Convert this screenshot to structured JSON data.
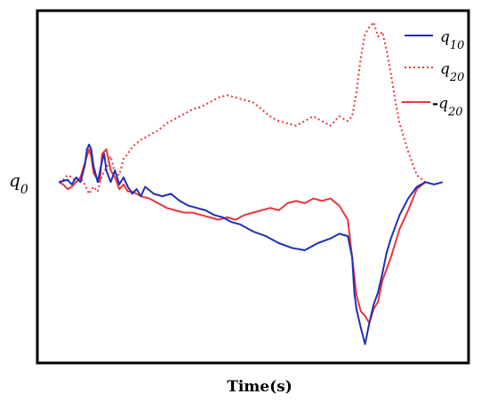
{
  "chart_data": {
    "type": "line",
    "title": "",
    "xlabel": "Time(s)",
    "ylabel": "q0",
    "ylabel_base": "q",
    "ylabel_sub": "0",
    "xlim": [
      0,
      1
    ],
    "ylim": [
      -0.75,
      0.75
    ],
    "grid": false,
    "ticks": false,
    "legend_position": "top-right",
    "series": [
      {
        "name": "q10",
        "name_base": "q",
        "name_sub": "10",
        "color": "#1f2fb5",
        "dash": "solid",
        "x": [
          0.05,
          0.06,
          0.07,
          0.08,
          0.09,
          0.1,
          0.11,
          0.115,
          0.12,
          0.125,
          0.13,
          0.14,
          0.15,
          0.155,
          0.16,
          0.17,
          0.18,
          0.19,
          0.2,
          0.21,
          0.22,
          0.23,
          0.24,
          0.25,
          0.27,
          0.29,
          0.31,
          0.33,
          0.35,
          0.37,
          0.39,
          0.41,
          0.43,
          0.45,
          0.47,
          0.5,
          0.53,
          0.56,
          0.59,
          0.62,
          0.65,
          0.68,
          0.7,
          0.72,
          0.73,
          0.735,
          0.74,
          0.75,
          0.76,
          0.77,
          0.78,
          0.79,
          0.8,
          0.81,
          0.82,
          0.84,
          0.86,
          0.88,
          0.9,
          0.92,
          0.94
        ],
        "values": [
          0.02,
          0.025,
          0.03,
          0.01,
          0.04,
          0.02,
          0.09,
          0.16,
          0.18,
          0.16,
          0.09,
          0.02,
          0.11,
          0.14,
          0.07,
          0.02,
          0.07,
          0.01,
          0.04,
          0.0,
          -0.03,
          -0.01,
          -0.04,
          0.0,
          -0.03,
          -0.04,
          -0.03,
          -0.06,
          -0.08,
          -0.09,
          -0.1,
          -0.12,
          -0.13,
          -0.15,
          -0.16,
          -0.19,
          -0.21,
          -0.24,
          -0.26,
          -0.27,
          -0.24,
          -0.22,
          -0.2,
          -0.21,
          -0.3,
          -0.45,
          -0.52,
          -0.6,
          -0.67,
          -0.58,
          -0.5,
          -0.45,
          -0.37,
          -0.28,
          -0.22,
          -0.12,
          -0.05,
          0.0,
          0.02,
          0.01,
          0.02
        ]
      },
      {
        "name": "q20",
        "name_base": "q",
        "name_sub": "20",
        "color": "#e8363c",
        "dash": "dotted",
        "x": [
          0.05,
          0.06,
          0.07,
          0.08,
          0.09,
          0.1,
          0.11,
          0.12,
          0.13,
          0.14,
          0.145,
          0.15,
          0.16,
          0.17,
          0.18,
          0.19,
          0.2,
          0.21,
          0.22,
          0.24,
          0.26,
          0.28,
          0.3,
          0.32,
          0.34,
          0.36,
          0.38,
          0.4,
          0.42,
          0.44,
          0.46,
          0.48,
          0.5,
          0.52,
          0.54,
          0.56,
          0.58,
          0.6,
          0.62,
          0.64,
          0.66,
          0.68,
          0.7,
          0.72,
          0.73,
          0.74,
          0.75,
          0.76,
          0.77,
          0.78,
          0.79,
          0.8,
          0.81,
          0.82,
          0.83,
          0.84,
          0.86,
          0.88,
          0.9
        ],
        "values": [
          0.02,
          0.03,
          0.05,
          0.04,
          0.02,
          0.04,
          0.01,
          -0.03,
          0.0,
          -0.02,
          0.02,
          0.05,
          0.08,
          0.13,
          0.06,
          0.05,
          0.12,
          0.14,
          0.17,
          0.2,
          0.22,
          0.24,
          0.27,
          0.29,
          0.31,
          0.33,
          0.34,
          0.36,
          0.38,
          0.39,
          0.38,
          0.37,
          0.36,
          0.33,
          0.3,
          0.28,
          0.27,
          0.26,
          0.28,
          0.3,
          0.28,
          0.26,
          0.3,
          0.28,
          0.3,
          0.4,
          0.55,
          0.65,
          0.68,
          0.7,
          0.64,
          0.66,
          0.58,
          0.48,
          0.37,
          0.27,
          0.15,
          0.05,
          0.02
        ]
      },
      {
        "name": "-q20",
        "name_base": "q",
        "name_sub": "20",
        "name_prefix": "-",
        "color": "#e8363c",
        "dash": "solid",
        "x": [
          0.05,
          0.06,
          0.07,
          0.08,
          0.09,
          0.1,
          0.11,
          0.12,
          0.125,
          0.13,
          0.14,
          0.145,
          0.15,
          0.16,
          0.17,
          0.18,
          0.19,
          0.2,
          0.21,
          0.22,
          0.24,
          0.26,
          0.28,
          0.3,
          0.32,
          0.34,
          0.36,
          0.38,
          0.4,
          0.42,
          0.44,
          0.46,
          0.48,
          0.5,
          0.52,
          0.54,
          0.56,
          0.58,
          0.6,
          0.62,
          0.64,
          0.66,
          0.68,
          0.7,
          0.72,
          0.73,
          0.74,
          0.75,
          0.76,
          0.77,
          0.78,
          0.79,
          0.8,
          0.82,
          0.84,
          0.86,
          0.88,
          0.9
        ],
        "values": [
          0.02,
          0.01,
          -0.01,
          0.0,
          0.02,
          0.04,
          0.1,
          0.16,
          0.13,
          0.06,
          0.03,
          0.02,
          0.14,
          0.16,
          0.07,
          0.04,
          -0.01,
          0.01,
          -0.02,
          -0.02,
          -0.04,
          -0.05,
          -0.07,
          -0.09,
          -0.1,
          -0.11,
          -0.11,
          -0.12,
          -0.13,
          -0.14,
          -0.13,
          -0.14,
          -0.12,
          -0.11,
          -0.1,
          -0.09,
          -0.1,
          -0.07,
          -0.06,
          -0.07,
          -0.05,
          -0.06,
          -0.05,
          -0.08,
          -0.14,
          -0.3,
          -0.46,
          -0.53,
          -0.55,
          -0.58,
          -0.52,
          -0.49,
          -0.4,
          -0.3,
          -0.18,
          -0.1,
          -0.01,
          0.02
        ]
      }
    ]
  }
}
